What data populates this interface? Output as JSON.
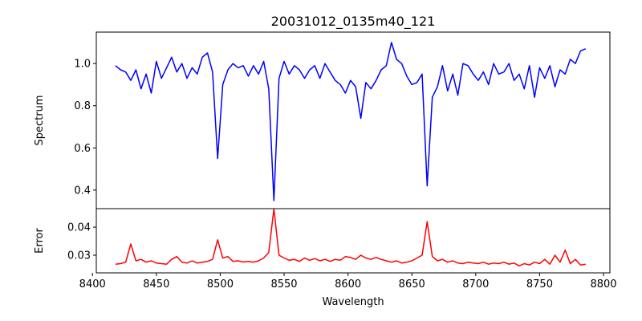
{
  "chart_data": [
    {
      "type": "line",
      "title": "20031012_0135m40_121",
      "xlabel": "",
      "ylabel": "Spectrum",
      "xlim": [
        8403,
        8805
      ],
      "ylim": [
        0.312,
        1.149
      ],
      "x_start": 8418,
      "x_step": 4,
      "yticks": [
        0.4,
        0.6,
        0.8,
        1.0
      ],
      "ytick_labels": [
        "0.4",
        "0.6",
        "0.8",
        "1.0"
      ],
      "color": "#0000ff",
      "values": [
        0.99,
        0.97,
        0.96,
        0.92,
        0.97,
        0.88,
        0.95,
        0.86,
        1.01,
        0.93,
        0.98,
        1.03,
        0.96,
        1.0,
        0.93,
        0.98,
        0.95,
        1.03,
        1.05,
        0.96,
        0.55,
        0.9,
        0.97,
        1.0,
        0.98,
        0.99,
        0.94,
        0.99,
        0.95,
        1.01,
        0.88,
        0.35,
        0.93,
        1.01,
        0.95,
        0.99,
        0.97,
        0.93,
        0.97,
        0.99,
        0.93,
        1.0,
        0.96,
        0.92,
        0.9,
        0.86,
        0.92,
        0.89,
        0.74,
        0.91,
        0.88,
        0.92,
        0.97,
        0.99,
        1.1,
        1.02,
        1.0,
        0.94,
        0.9,
        0.91,
        0.95,
        0.42,
        0.84,
        0.89,
        0.99,
        0.87,
        0.95,
        0.85,
        1.0,
        0.99,
        0.95,
        0.92,
        0.96,
        0.9,
        1.0,
        0.95,
        0.96,
        1.0,
        0.92,
        0.95,
        0.88,
        0.99,
        0.84,
        0.98,
        0.93,
        0.99,
        0.89,
        0.97,
        0.95,
        1.02,
        1.0,
        1.06,
        1.07
      ]
    },
    {
      "type": "line",
      "title": "",
      "xlabel": "Wavelength",
      "ylabel": "Error",
      "xlim": [
        8403,
        8805
      ],
      "ylim": [
        0.0237,
        0.0466
      ],
      "x_start": 8418,
      "x_step": 4,
      "xticks": [
        8400,
        8450,
        8500,
        8550,
        8600,
        8650,
        8700,
        8750,
        8800
      ],
      "xtick_labels": [
        "8400",
        "8450",
        "8500",
        "8550",
        "8600",
        "8650",
        "8700",
        "8750",
        "8800"
      ],
      "yticks": [
        0.03,
        0.04
      ],
      "ytick_labels": [
        "0.03",
        "0.04"
      ],
      "color": "#ff0000",
      "values": [
        0.0268,
        0.027,
        0.0275,
        0.034,
        0.028,
        0.0285,
        0.0275,
        0.028,
        0.0272,
        0.027,
        0.0268,
        0.0285,
        0.0295,
        0.0275,
        0.0272,
        0.028,
        0.0272,
        0.0275,
        0.0278,
        0.0285,
        0.0355,
        0.029,
        0.0295,
        0.0278,
        0.028,
        0.0276,
        0.0278,
        0.0275,
        0.028,
        0.029,
        0.031,
        0.0465,
        0.03,
        0.029,
        0.0282,
        0.0285,
        0.0278,
        0.029,
        0.0282,
        0.0288,
        0.028,
        0.0285,
        0.0278,
        0.0285,
        0.0282,
        0.0295,
        0.0292,
        0.0285,
        0.03,
        0.029,
        0.0285,
        0.0292,
        0.0285,
        0.028,
        0.0275,
        0.028,
        0.0272,
        0.0275,
        0.028,
        0.029,
        0.03,
        0.042,
        0.0295,
        0.028,
        0.0285,
        0.0275,
        0.028,
        0.0272,
        0.027,
        0.0275,
        0.0272,
        0.027,
        0.0275,
        0.0268,
        0.0272,
        0.027,
        0.0275,
        0.0268,
        0.0272,
        0.0262,
        0.027,
        0.0265,
        0.0275,
        0.027,
        0.0285,
        0.0268,
        0.03,
        0.0275,
        0.0318,
        0.027,
        0.0285,
        0.0265,
        0.0268
      ]
    }
  ]
}
